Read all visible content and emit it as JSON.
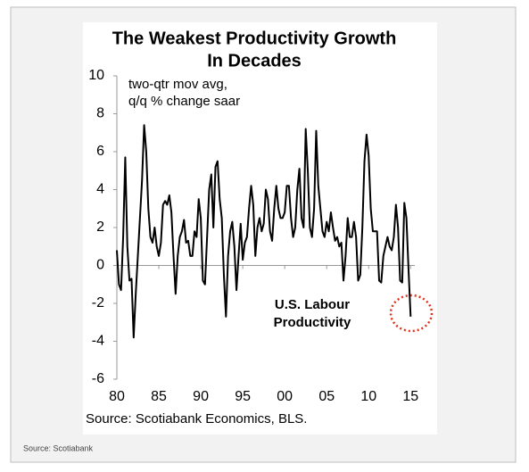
{
  "chart_data": {
    "type": "line",
    "title": [
      "The Weakest Productivity Growth",
      "In Decades"
    ],
    "annotations": [
      "two-qtr mov avg,",
      "q/q % change saar",
      "U.S. Labour",
      "Productivity"
    ],
    "source": "Source: Scotiabank Economics, BLS.",
    "color": "#000000",
    "xlim": [
      1980,
      2015.5
    ],
    "ylim": [
      -6,
      10
    ],
    "yticks": [
      -6,
      -4,
      -2,
      0,
      2,
      4,
      6,
      8,
      10
    ],
    "xticks": [
      {
        "value": 1980,
        "label": "80"
      },
      {
        "value": 1985,
        "label": "85"
      },
      {
        "value": 1990,
        "label": "90"
      },
      {
        "value": 1995,
        "label": "95"
      },
      {
        "value": 2000,
        "label": "00"
      },
      {
        "value": 2005,
        "label": "05"
      },
      {
        "value": 2010,
        "label": "10"
      },
      {
        "value": 2015,
        "label": "15"
      }
    ],
    "x": [
      1980,
      1980.25,
      1980.5,
      1980.75,
      1981,
      1981.25,
      1981.5,
      1981.75,
      1982,
      1982.25,
      1982.5,
      1982.75,
      1983,
      1983.25,
      1983.5,
      1983.75,
      1984,
      1984.25,
      1984.5,
      1984.75,
      1985,
      1985.25,
      1985.5,
      1985.75,
      1986,
      1986.25,
      1986.5,
      1986.75,
      1987,
      1987.25,
      1987.5,
      1987.75,
      1988,
      1988.25,
      1988.5,
      1988.75,
      1989,
      1989.25,
      1989.5,
      1989.75,
      1990,
      1990.25,
      1990.5,
      1990.75,
      1991,
      1991.25,
      1991.5,
      1991.75,
      1992,
      1992.25,
      1992.5,
      1992.75,
      1993,
      1993.25,
      1993.5,
      1993.75,
      1994,
      1994.25,
      1994.5,
      1994.75,
      1995,
      1995.25,
      1995.5,
      1995.75,
      1996,
      1996.25,
      1996.5,
      1996.75,
      1997,
      1997.25,
      1997.5,
      1997.75,
      1998,
      1998.25,
      1998.5,
      1998.75,
      1999,
      1999.25,
      1999.5,
      1999.75,
      2000,
      2000.25,
      2000.5,
      2000.75,
      2001,
      2001.25,
      2001.5,
      2001.75,
      2002,
      2002.25,
      2002.5,
      2002.75,
      2003,
      2003.25,
      2003.5,
      2003.75,
      2004,
      2004.25,
      2004.5,
      2004.75,
      2005,
      2005.25,
      2005.5,
      2005.75,
      2006,
      2006.25,
      2006.5,
      2006.75,
      2007,
      2007.25,
      2007.5,
      2007.75,
      2008,
      2008.25,
      2008.5,
      2008.75,
      2009,
      2009.25,
      2009.5,
      2009.75,
      2010,
      2010.25,
      2010.5,
      2010.75,
      2011,
      2011.25,
      2011.5,
      2011.75,
      2012,
      2012.25,
      2012.5,
      2012.75,
      2013,
      2013.25,
      2013.5,
      2013.75,
      2014,
      2014.25,
      2014.5,
      2014.75,
      2015
    ],
    "values": [
      0.8,
      -1.0,
      -1.3,
      1.5,
      5.7,
      1.0,
      -0.8,
      -0.7,
      -3.8,
      -1.5,
      0.5,
      2.5,
      4.5,
      7.4,
      6.0,
      3.0,
      1.5,
      1.2,
      2.0,
      1.0,
      0.5,
      1.2,
      3.2,
      3.4,
      3.2,
      3.7,
      2.8,
      0.5,
      -1.5,
      0.5,
      1.5,
      1.8,
      2.4,
      1.2,
      1.3,
      0.5,
      0.5,
      1.8,
      1.5,
      3.5,
      2.5,
      -0.8,
      -1.0,
      1.5,
      4.0,
      4.8,
      2.0,
      5.2,
      5.5,
      3.5,
      2.5,
      -0.5,
      -2.7,
      0.5,
      1.8,
      2.3,
      1.0,
      -1.3,
      0.5,
      2.2,
      0.3,
      1.2,
      1.5,
      3.0,
      4.2,
      3.2,
      0.5,
      2.0,
      2.5,
      1.8,
      2.2,
      4.0,
      3.5,
      1.8,
      1.3,
      3.0,
      4.2,
      3.0,
      2.5,
      2.5,
      2.8,
      4.2,
      4.2,
      2.5,
      1.5,
      2.0,
      4.0,
      5.1,
      2.5,
      2.0,
      7.2,
      5.0,
      2.0,
      1.5,
      3.0,
      7.1,
      4.2,
      3.0,
      1.8,
      1.5,
      2.3,
      1.8,
      2.8,
      2.0,
      1.3,
      1.5,
      1.0,
      1.2,
      -0.8,
      0.5,
      2.5,
      1.5,
      1.5,
      2.3,
      1.5,
      -0.8,
      -0.5,
      2.0,
      5.5,
      6.9,
      5.8,
      3.0,
      1.8,
      1.8,
      1.8,
      -0.8,
      -0.9,
      0.5,
      1.0,
      1.5,
      1.0,
      0.8,
      1.5,
      3.2,
      2.0,
      -0.8,
      -0.9,
      3.3,
      2.5,
      -0.2,
      -2.7
    ]
  },
  "footer": "Source: Scotiabank"
}
